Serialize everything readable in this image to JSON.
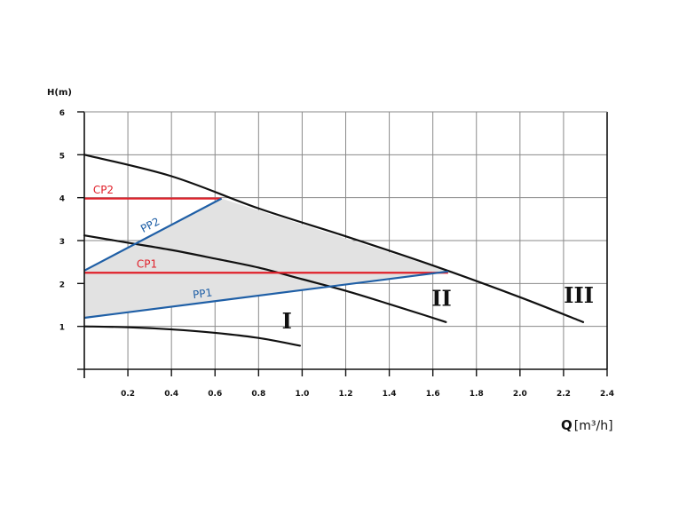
{
  "chart_data": {
    "type": "line",
    "ylabel": "H(m)",
    "xlabel_main": "Q",
    "xlabel_unit": "[m³/h]",
    "xlim": [
      0,
      2.4
    ],
    "ylim": [
      0,
      6
    ],
    "x_ticks": [
      0.2,
      0.4,
      0.6,
      0.8,
      1.0,
      1.2,
      1.4,
      1.6,
      1.8,
      2.0,
      2.2,
      2.4
    ],
    "x_tick_labels": [
      "0.2",
      "0.4",
      "0.6",
      "0.8",
      "1.0",
      "1.2",
      "1.4",
      "1.6",
      "1.8",
      "2.0",
      "2.2",
      "2.4"
    ],
    "y_ticks": [
      1,
      2,
      3,
      4,
      5,
      6
    ],
    "y_tick_labels": [
      "1",
      "2",
      "3",
      "4",
      "5",
      "6"
    ],
    "x_grid_step": 0.2,
    "y_grid_step": 1,
    "grid": true,
    "shaded_region": [
      [
        0,
        2.3
      ],
      [
        0.63,
        3.98
      ],
      [
        1.67,
        2.28
      ],
      [
        0,
        1.2
      ]
    ],
    "pump_curves": [
      {
        "label": "I",
        "points": [
          [
            0,
            1.0
          ],
          [
            0.2,
            0.98
          ],
          [
            0.4,
            0.93
          ],
          [
            0.6,
            0.85
          ],
          [
            0.8,
            0.73
          ],
          [
            0.99,
            0.55
          ]
        ],
        "label_pos": [
          0.93,
          0.95
        ]
      },
      {
        "label": "II",
        "points": [
          [
            0,
            3.12
          ],
          [
            0.2,
            2.95
          ],
          [
            0.4,
            2.78
          ],
          [
            0.6,
            2.58
          ],
          [
            0.8,
            2.37
          ],
          [
            1.0,
            2.1
          ],
          [
            1.2,
            1.83
          ],
          [
            1.4,
            1.52
          ],
          [
            1.55,
            1.28
          ],
          [
            1.66,
            1.1
          ]
        ],
        "label_pos": [
          1.64,
          1.48
        ]
      },
      {
        "label": "III",
        "points": [
          [
            0,
            5.0
          ],
          [
            0.4,
            4.5
          ],
          [
            0.8,
            3.75
          ],
          [
            1.2,
            3.1
          ],
          [
            1.6,
            2.42
          ],
          [
            2.0,
            1.68
          ],
          [
            2.29,
            1.1
          ]
        ],
        "label_pos": [
          2.27,
          1.55
        ]
      }
    ],
    "red_series": [
      {
        "name": "CP2",
        "y": 3.98,
        "x": [
          0,
          0.63
        ],
        "label_pos": [
          0.04,
          4.1
        ]
      },
      {
        "name": "CP1",
        "y": 2.25,
        "x": [
          0,
          1.67
        ],
        "label_pos": [
          0.24,
          2.37
        ]
      }
    ],
    "blue_series": [
      {
        "name": "PP2",
        "points": [
          [
            0,
            2.3
          ],
          [
            0.63,
            3.98
          ]
        ],
        "label_pos": [
          0.27,
          3.18
        ]
      },
      {
        "name": "PP1",
        "points": [
          [
            0,
            1.2
          ],
          [
            1.67,
            2.28
          ]
        ],
        "label_pos": [
          0.5,
          1.65
        ]
      }
    ],
    "colors": {
      "red": "#e0202a",
      "blue": "#1f5fa6",
      "black": "#111111",
      "grid": "#8a8a8a",
      "shade": "#e2e2e2"
    }
  }
}
